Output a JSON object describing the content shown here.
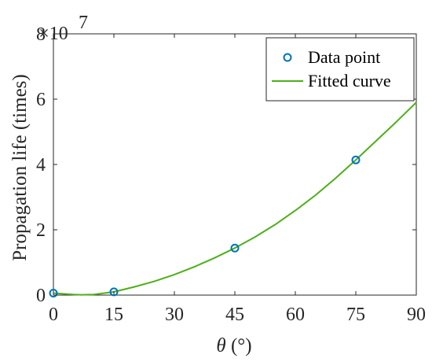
{
  "chart_data": {
    "type": "scatter",
    "xlabel_symbol": "θ",
    "xlabel_unit": " (°)",
    "ylabel": "Propagation life (times)",
    "y_exponent_base": "×10",
    "y_exponent_power": "7",
    "xlim": [
      0,
      90
    ],
    "ylim": [
      0,
      8
    ],
    "xticks": [
      0,
      15,
      30,
      45,
      60,
      75,
      90
    ],
    "yticks": [
      0,
      2,
      4,
      6,
      8
    ],
    "grid": false,
    "legend_position": "top-right",
    "series": [
      {
        "name": "Data point",
        "kind": "markers",
        "color": "#0072BD",
        "x": [
          0,
          15,
          45,
          75
        ],
        "y": [
          0.06,
          0.1,
          1.44,
          4.14
        ]
      },
      {
        "name": "Fitted curve",
        "kind": "line",
        "color": "#4DAF1A",
        "x": [
          0,
          5,
          7,
          10,
          15,
          20,
          25,
          30,
          35,
          40,
          45,
          50,
          55,
          60,
          65,
          70,
          75,
          80,
          85,
          90
        ],
        "y": [
          0.06,
          0.02,
          0.01,
          0.02,
          0.1,
          0.25,
          0.42,
          0.63,
          0.87,
          1.14,
          1.44,
          1.78,
          2.16,
          2.59,
          3.06,
          3.58,
          4.14,
          4.72,
          5.3,
          5.9
        ]
      }
    ]
  }
}
